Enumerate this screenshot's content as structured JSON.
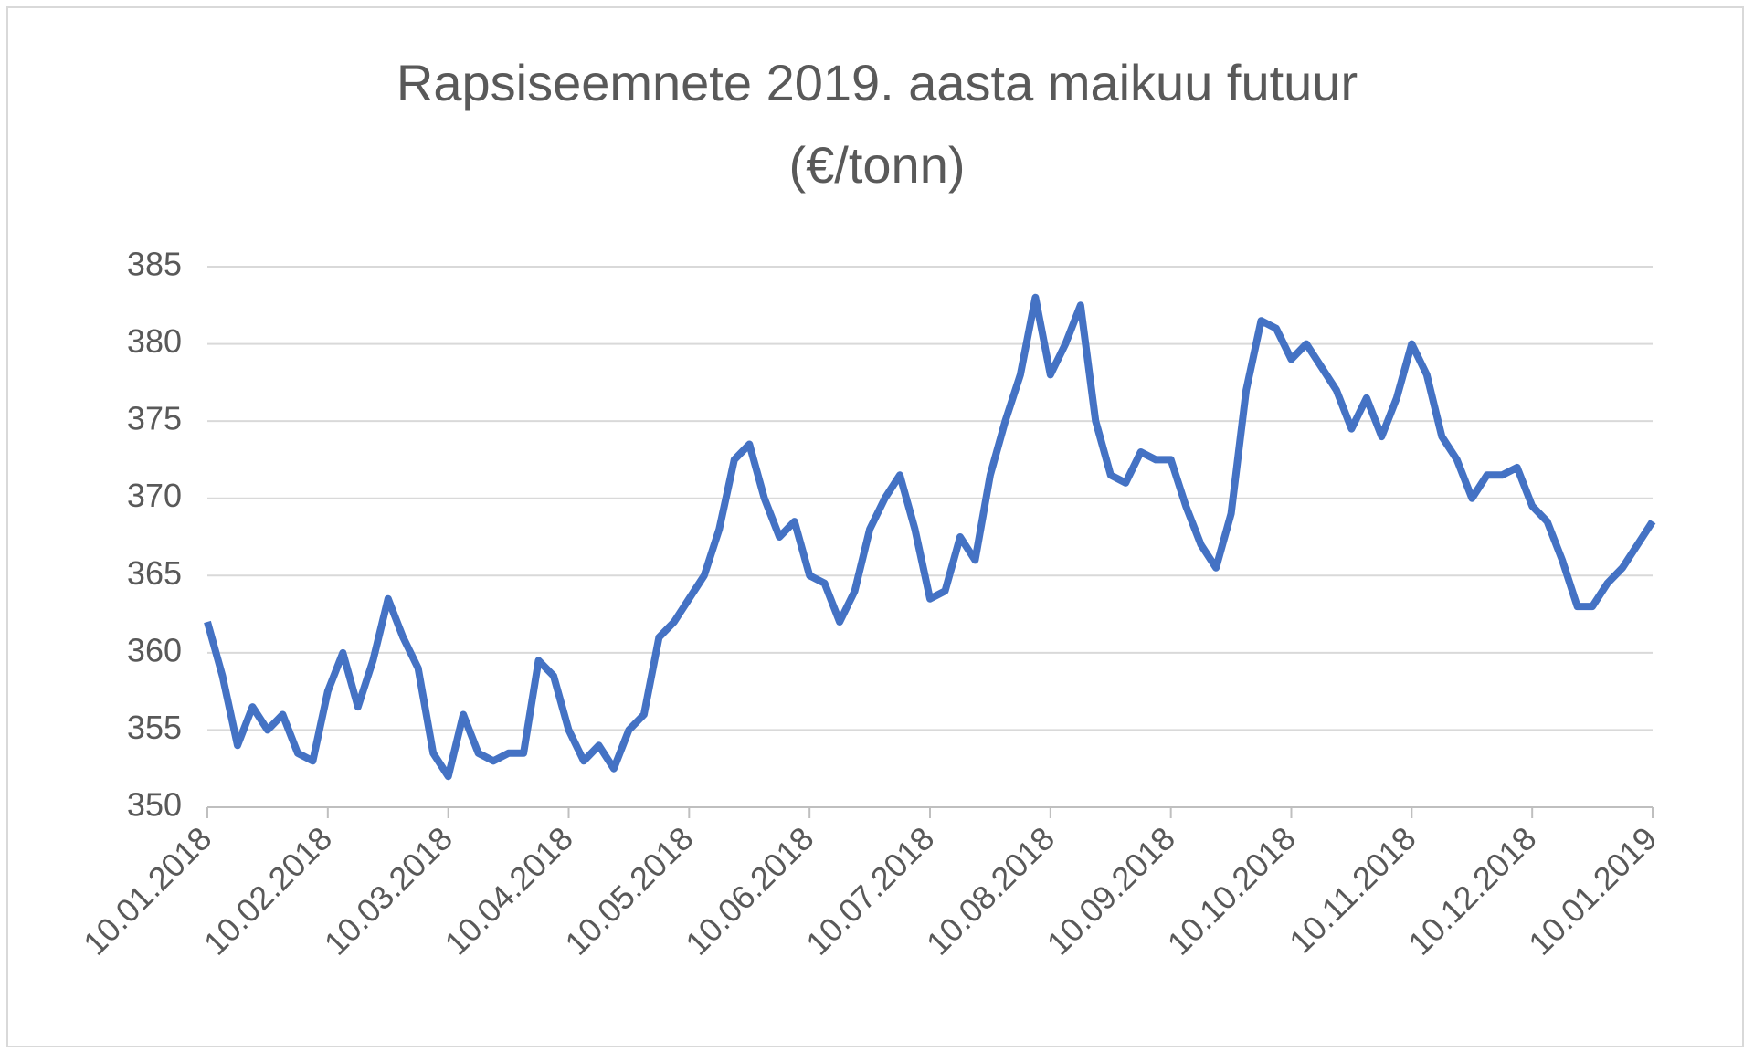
{
  "chart_data": {
    "type": "line",
    "title": [
      "Rapsiseemnete 2019. aasta maikuu futuur",
      "(€/tonn)"
    ],
    "categories": [
      "10.01.2018",
      null,
      null,
      null,
      null,
      null,
      null,
      null,
      "10.02.2018",
      null,
      null,
      null,
      null,
      null,
      null,
      null,
      "10.03.2018",
      null,
      null,
      null,
      null,
      null,
      null,
      null,
      "10.04.2018",
      null,
      null,
      null,
      null,
      null,
      null,
      null,
      "10.05.2018",
      null,
      null,
      null,
      null,
      null,
      null,
      null,
      "10.06.2018",
      null,
      null,
      null,
      null,
      null,
      null,
      null,
      "10.07.2018",
      null,
      null,
      null,
      null,
      null,
      null,
      null,
      "10.08.2018",
      null,
      null,
      null,
      null,
      null,
      null,
      null,
      "10.09.2018",
      null,
      null,
      null,
      null,
      null,
      null,
      null,
      "10.10.2018",
      null,
      null,
      null,
      null,
      null,
      null,
      null,
      "10.11.2018",
      null,
      null,
      null,
      null,
      null,
      null,
      null,
      "10.12.2018",
      null,
      null,
      null,
      null,
      null,
      null,
      null,
      "10.01.2019"
    ],
    "values": [
      362,
      358.5,
      354,
      356.5,
      355,
      356,
      353.5,
      353,
      357.5,
      360,
      356.5,
      359.5,
      363.5,
      361,
      359,
      353.5,
      352,
      356,
      353.5,
      353,
      353.5,
      353.5,
      359.5,
      358.5,
      355,
      353,
      354,
      352.5,
      355,
      356,
      361,
      362,
      363.5,
      365,
      368,
      372.5,
      373.5,
      370,
      367.5,
      368.5,
      365,
      364.5,
      362,
      364,
      368,
      370,
      371.5,
      368,
      363.5,
      364,
      367.5,
      366,
      371.5,
      375,
      378,
      383,
      378,
      380,
      382.5,
      375,
      371.5,
      371,
      373,
      372.5,
      372.5,
      369.5,
      367,
      365.5,
      369,
      377,
      381.5,
      381,
      379,
      380,
      378.5,
      377,
      374.5,
      376.5,
      374,
      376.5,
      380,
      378,
      374,
      372.5,
      370,
      371.5,
      371.5,
      372,
      369.5,
      368.5,
      366,
      363,
      363,
      364.5,
      365.5,
      367,
      368.5
    ],
    "color": "#4472c4",
    "ylim": [
      350,
      385
    ],
    "yticks": [
      350,
      355,
      360,
      365,
      370,
      375,
      380,
      385
    ],
    "grid": true
  }
}
